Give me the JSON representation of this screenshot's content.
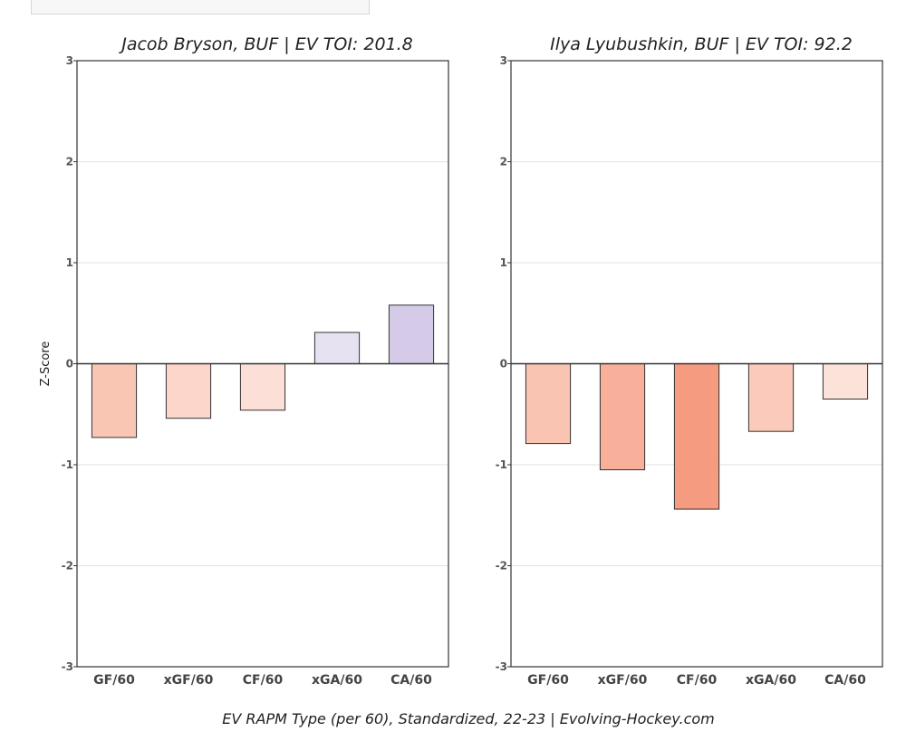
{
  "chart_data": [
    {
      "type": "bar",
      "title": "Jacob Bryson, BUF  |  EV TOI: 201.8",
      "ylabel": "Z-Score",
      "xlabel": "",
      "ylim": [
        -3,
        3
      ],
      "yticks": [
        3,
        2,
        1,
        0,
        -1,
        -2,
        -3
      ],
      "grid": true,
      "categories": [
        "GF/60",
        "xGF/60",
        "CF/60",
        "xGA/60",
        "CA/60"
      ],
      "values": [
        -0.73,
        -0.54,
        -0.46,
        0.31,
        0.58
      ],
      "colors": [
        "#f9c6b4",
        "#fcd6cb",
        "#fcdfd6",
        "#e6e2f1",
        "#d5cbe8"
      ]
    },
    {
      "type": "bar",
      "title": "Ilya Lyubushkin, BUF  |  EV TOI: 92.2",
      "ylabel": "",
      "xlabel": "",
      "ylim": [
        -3,
        3
      ],
      "yticks": [
        3,
        2,
        1,
        0,
        -1,
        -2,
        -3
      ],
      "grid": true,
      "categories": [
        "GF/60",
        "xGF/60",
        "CF/60",
        "xGA/60",
        "CA/60"
      ],
      "values": [
        -0.79,
        -1.05,
        -1.44,
        -0.67,
        -0.35
      ],
      "colors": [
        "#f9c4b1",
        "#f8b09a",
        "#f49b80",
        "#fbcabb",
        "#fce3da"
      ]
    }
  ],
  "footer": "EV RAPM Type (per 60), Standardized, 22-23   |   Evolving-Hockey.com"
}
